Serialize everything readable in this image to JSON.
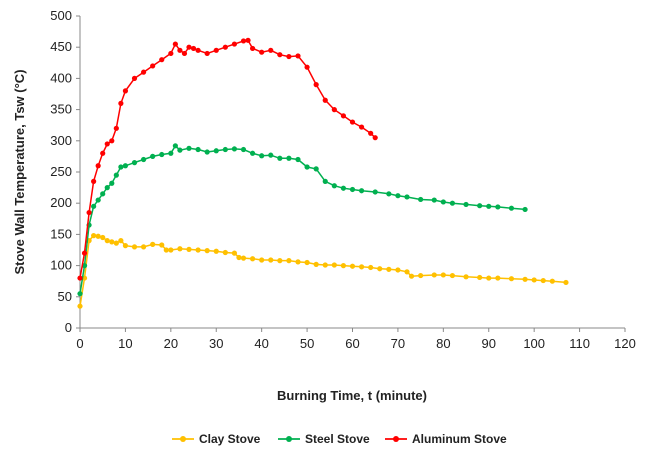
{
  "chart_data": {
    "type": "line",
    "title": "",
    "xlabel": "Burning Time, t (minute)",
    "ylabel": "Stove Wall Temperature, Tsw (°C)",
    "xlim": [
      0,
      120
    ],
    "ylim": [
      0,
      500
    ],
    "xticks": [
      0,
      10,
      20,
      30,
      40,
      50,
      60,
      70,
      80,
      90,
      100,
      110,
      120
    ],
    "yticks": [
      0,
      50,
      100,
      150,
      200,
      250,
      300,
      350,
      400,
      450,
      500
    ],
    "grid": false,
    "legend": "bottom",
    "series": [
      {
        "name": "Clay Stove",
        "color": "#FFC000",
        "x": [
          0,
          1,
          2,
          3,
          4,
          5,
          6,
          7,
          8,
          9,
          10,
          12,
          14,
          16,
          18,
          19,
          20,
          22,
          24,
          26,
          28,
          30,
          32,
          34,
          35,
          36,
          38,
          40,
          42,
          44,
          46,
          48,
          50,
          52,
          54,
          56,
          58,
          60,
          62,
          64,
          66,
          68,
          70,
          72,
          73,
          75,
          78,
          80,
          82,
          85,
          88,
          90,
          92,
          95,
          98,
          100,
          102,
          104,
          107
        ],
        "y": [
          35,
          80,
          140,
          148,
          147,
          145,
          140,
          138,
          136,
          140,
          132,
          130,
          130,
          134,
          133,
          125,
          125,
          127,
          126,
          125,
          124,
          123,
          121,
          120,
          113,
          112,
          111,
          109,
          109,
          108,
          108,
          106,
          105,
          102,
          101,
          101,
          100,
          99,
          98,
          97,
          95,
          94,
          93,
          90,
          83,
          84,
          85,
          85,
          84,
          82,
          81,
          80,
          80,
          79,
          78,
          77,
          76,
          75,
          73
        ]
      },
      {
        "name": "Steel Stove",
        "color": "#00B050",
        "x": [
          0,
          1,
          2,
          3,
          4,
          5,
          6,
          7,
          8,
          9,
          10,
          12,
          14,
          16,
          18,
          20,
          21,
          22,
          24,
          26,
          28,
          30,
          32,
          34,
          36,
          38,
          40,
          42,
          44,
          46,
          48,
          50,
          52,
          54,
          56,
          58,
          60,
          62,
          65,
          68,
          70,
          72,
          75,
          78,
          80,
          82,
          85,
          88,
          90,
          92,
          95,
          98
        ],
        "y": [
          55,
          100,
          165,
          195,
          205,
          215,
          225,
          232,
          245,
          258,
          260,
          265,
          270,
          275,
          278,
          280,
          292,
          285,
          288,
          286,
          282,
          284,
          286,
          287,
          286,
          280,
          276,
          277,
          272,
          272,
          270,
          258,
          255,
          235,
          228,
          224,
          222,
          220,
          218,
          215,
          212,
          210,
          206,
          205,
          202,
          200,
          198,
          196,
          195,
          194,
          192,
          190
        ]
      },
      {
        "name": "Aluminum Stove",
        "color": "#FF0000",
        "x": [
          0,
          1,
          2,
          3,
          4,
          5,
          6,
          7,
          8,
          9,
          10,
          12,
          14,
          16,
          18,
          20,
          21,
          22,
          23,
          24,
          25,
          26,
          28,
          30,
          32,
          34,
          36,
          37,
          38,
          40,
          42,
          44,
          46,
          48,
          50,
          52,
          54,
          56,
          58,
          60,
          62,
          64,
          65
        ],
        "y": [
          80,
          120,
          185,
          235,
          260,
          280,
          295,
          300,
          320,
          360,
          380,
          400,
          410,
          420,
          430,
          440,
          455,
          445,
          440,
          450,
          448,
          445,
          440,
          445,
          450,
          455,
          460,
          461,
          448,
          442,
          445,
          438,
          435,
          436,
          418,
          390,
          365,
          350,
          340,
          330,
          322,
          312,
          305
        ]
      }
    ]
  }
}
